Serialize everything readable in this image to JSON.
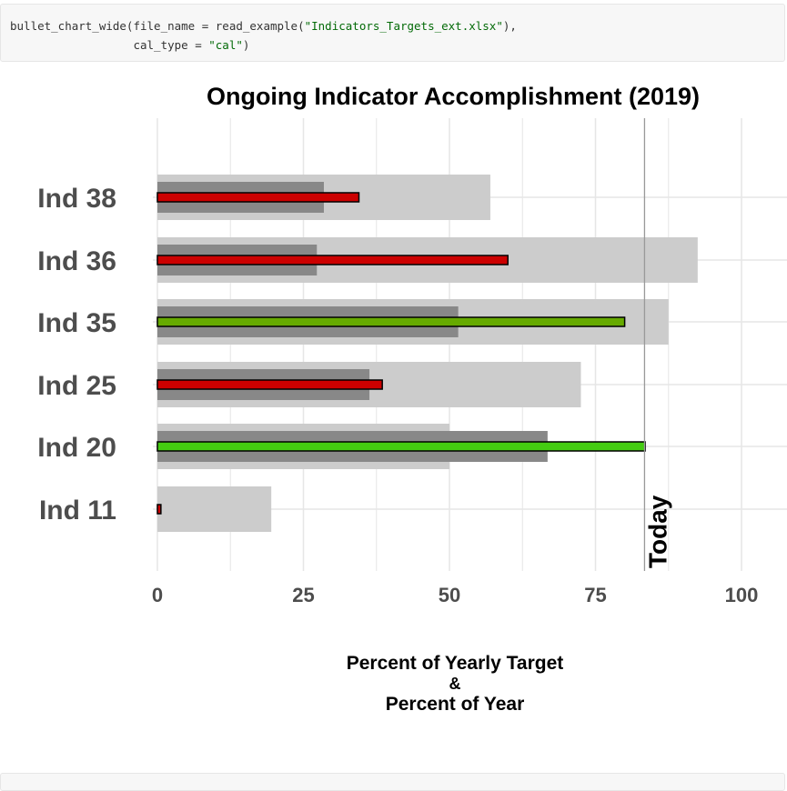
{
  "code": {
    "line1_prefix": "bullet_chart_wide(file_name = read_example(",
    "line1_string": "\"Indicators_Targets_ext.xlsx\"",
    "line1_suffix": "),",
    "line2_prefix": "                  cal_type = ",
    "line2_string": "\"cal\"",
    "line2_suffix": ")"
  },
  "chart_data": {
    "type": "bar",
    "title": "Ongoing Indicator Accomplishment (2019)",
    "xlabel_lines": [
      "Percent of Yearly Target",
      "&",
      "Percent of Year"
    ],
    "xlim": [
      0,
      100
    ],
    "x_ticks": [
      0,
      25,
      50,
      75,
      100
    ],
    "grid": true,
    "today_label": "Today",
    "today_value": 83.4,
    "categories": [
      "Ind 38",
      "Ind 36",
      "Ind 35",
      "Ind 25",
      "Ind 20",
      "Ind 11"
    ],
    "series": [
      {
        "values": [
          57,
          92.5,
          87.5,
          72.5,
          50,
          19.5
        ]
      },
      {
        "values": [
          28.5,
          27.3,
          51.5,
          36.3,
          66.8,
          0
        ]
      },
      {
        "values": [
          34.5,
          60,
          80,
          38.5,
          83.5,
          0.6
        ]
      }
    ],
    "colors": {
      "background_bar": "#cccccc",
      "mid_bar": "#888888",
      "behind": "#cc0000",
      "on_track": "#66aa00",
      "ahead": "#44cc11",
      "today_line": "#999999",
      "grid": "#e6e6e6"
    },
    "actual_bar_colors": [
      "#cc0000",
      "#cc0000",
      "#66aa00",
      "#cc0000",
      "#44cc11",
      "#cc0000"
    ]
  }
}
